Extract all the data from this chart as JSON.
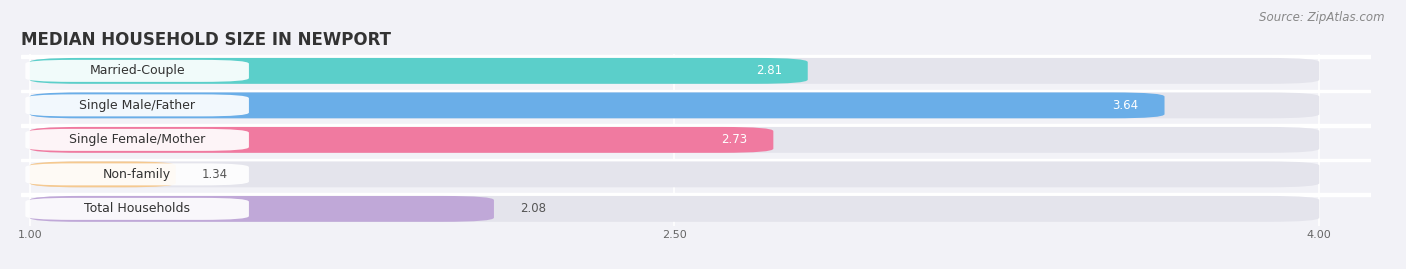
{
  "title": "MEDIAN HOUSEHOLD SIZE IN NEWPORT",
  "source": "Source: ZipAtlas.com",
  "categories": [
    "Married-Couple",
    "Single Male/Father",
    "Single Female/Mother",
    "Non-family",
    "Total Households"
  ],
  "values": [
    2.81,
    3.64,
    2.73,
    1.34,
    2.08
  ],
  "bar_colors": [
    "#5bcfca",
    "#6aaee8",
    "#f07aa0",
    "#f5c990",
    "#c0a8d8"
  ],
  "xmin": 1.0,
  "xmax": 4.0,
  "xticks": [
    1.0,
    2.5,
    4.0
  ],
  "background_color": "#f2f2f7",
  "bar_background": "#e4e4ec",
  "title_fontsize": 12,
  "source_fontsize": 8.5,
  "value_fontsize": 8.5,
  "category_fontsize": 9
}
